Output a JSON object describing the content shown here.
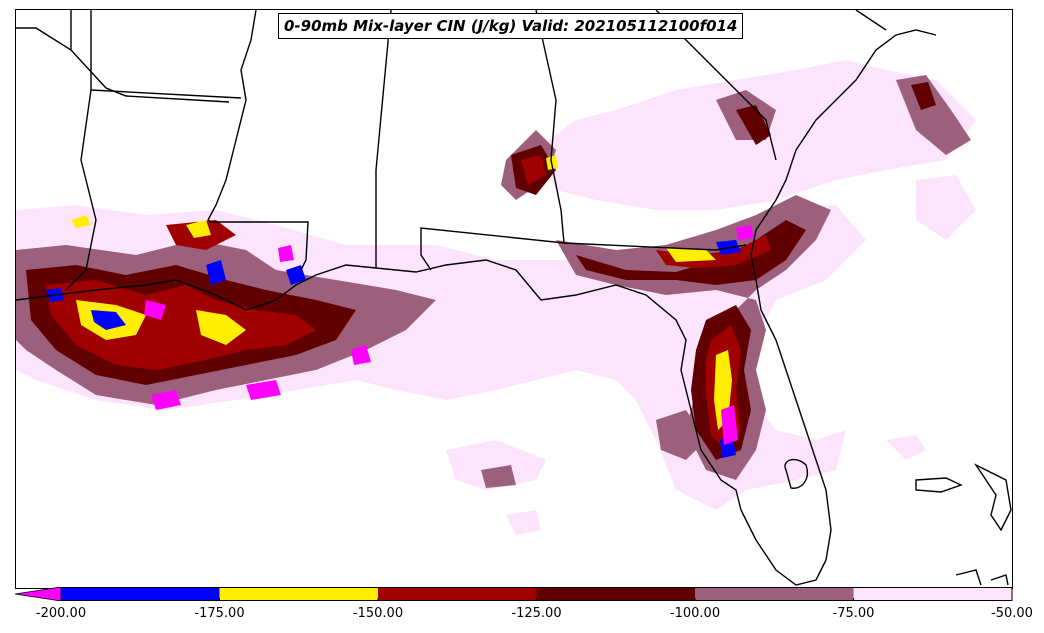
{
  "title": "0-90mb Mix-layer CIN (J/kg) Valid: 202105112100f014",
  "colorbar": {
    "extend": "min",
    "bins": [
      {
        "from": -200,
        "to": -175,
        "color": "#0000ff"
      },
      {
        "from": -175,
        "to": -150,
        "color": "#ffee00"
      },
      {
        "from": -150,
        "to": -125,
        "color": "#a00000"
      },
      {
        "from": -125,
        "to": -100,
        "color": "#600000"
      },
      {
        "from": -100,
        "to": -75,
        "color": "#9c607c"
      },
      {
        "from": -75,
        "to": -50,
        "color": "#fce4fc"
      }
    ],
    "under_color": "#ff00ff",
    "ticks": [
      "-200.00",
      "-175.00",
      "-150.00",
      "-125.00",
      "-100.00",
      "-75.00",
      "-50.00"
    ]
  },
  "map": {
    "region": "Southeastern United States and Gulf of Mexico",
    "colors": {
      "boundary": "#000000",
      "background": "#ffffff"
    }
  }
}
